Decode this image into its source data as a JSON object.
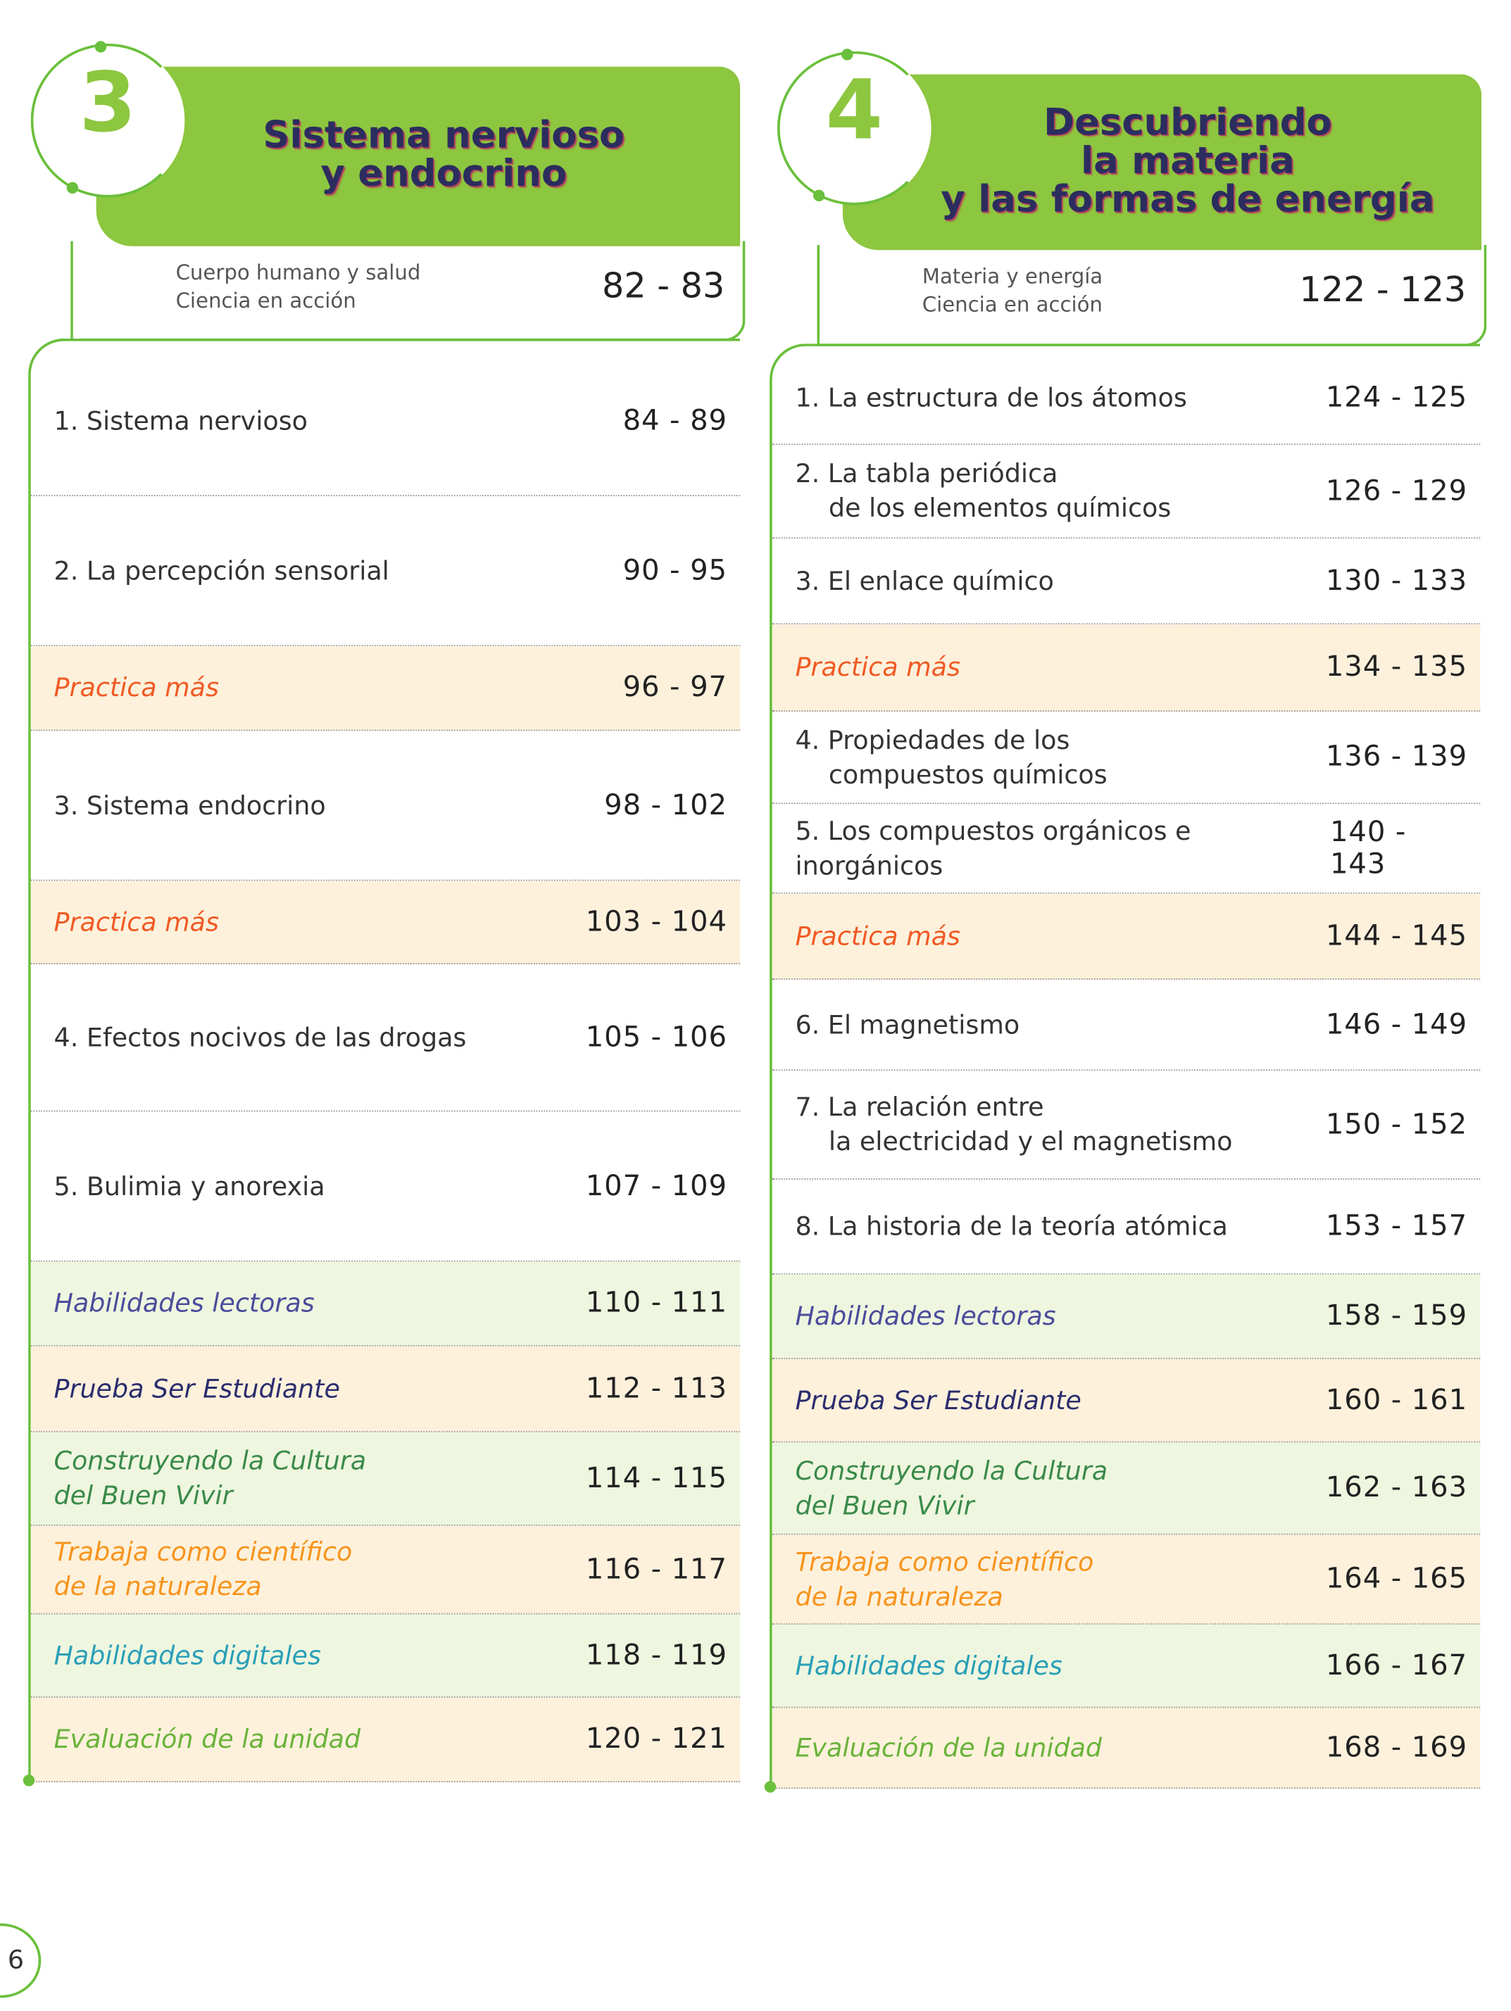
{
  "colors": {
    "header_green": "#8dc63f",
    "border_green": "#6abf3b",
    "practica": "#f15a24",
    "lectoras": "#4b4c9c",
    "prueba": "#2b2d6e",
    "buen_vivir": "#3a8a4a",
    "trabaja": "#f7941d",
    "digitales": "#2a9fb8",
    "evaluacion": "#6ab33a"
  },
  "page_number": "6",
  "units": [
    {
      "number": "3",
      "title_lines": [
        "Sistema nervioso",
        "y endocrino"
      ],
      "intro_lines": [
        "Cuerpo humano y salud",
        "Ciencia en acción"
      ],
      "intro_pages": "82 - 83",
      "rows": [
        {
          "title": [
            "1. Sistema nervioso"
          ],
          "pages": "84 - 89",
          "type": "lesson"
        },
        {
          "title": [
            "2. La percepción sensorial"
          ],
          "pages": "90 - 95",
          "type": "lesson"
        },
        {
          "title": [
            "Practica más"
          ],
          "pages": "96 - 97",
          "type": "practica"
        },
        {
          "title": [
            "3. Sistema endocrino"
          ],
          "pages": "98 - 102",
          "type": "lesson"
        },
        {
          "title": [
            "Practica más"
          ],
          "pages": "103 - 104",
          "type": "practica"
        },
        {
          "title": [
            "4. Efectos nocivos de las drogas"
          ],
          "pages": "105 - 106",
          "type": "lesson"
        },
        {
          "title": [
            "5. Bulimia y anorexia"
          ],
          "pages": "107 - 109",
          "type": "lesson"
        },
        {
          "title": [
            "Habilidades lectoras"
          ],
          "pages": "110 - 111",
          "type": "lectoras"
        },
        {
          "title": [
            "Prueba Ser Estudiante"
          ],
          "pages": "112 - 113",
          "type": "prueba"
        },
        {
          "title": [
            "Construyendo la Cultura",
            "del Buen Vivir"
          ],
          "pages": "114 - 115",
          "type": "buen_vivir"
        },
        {
          "title": [
            "Trabaja como científico",
            "de la naturaleza"
          ],
          "pages": "116 - 117",
          "type": "trabaja"
        },
        {
          "title": [
            "Habilidades digitales"
          ],
          "pages": "118 - 119",
          "type": "digitales"
        },
        {
          "title": [
            "Evaluación de la unidad"
          ],
          "pages": "120 - 121",
          "type": "evaluacion"
        }
      ]
    },
    {
      "number": "4",
      "title_lines": [
        "Descubriendo",
        "la materia",
        "y las formas de energía"
      ],
      "intro_lines": [
        "Materia y energía",
        "Ciencia en acción"
      ],
      "intro_pages": "122 - 123",
      "rows": [
        {
          "title": [
            "1. La estructura de los átomos"
          ],
          "pages": "124 - 125",
          "type": "lesson"
        },
        {
          "title": [
            "2. La tabla periódica",
            "de los elementos químicos"
          ],
          "pages": "126 - 129",
          "type": "lesson"
        },
        {
          "title": [
            "3. El enlace químico"
          ],
          "pages": "130 - 133",
          "type": "lesson"
        },
        {
          "title": [
            "Practica más"
          ],
          "pages": "134 - 135",
          "type": "practica"
        },
        {
          "title": [
            "4. Propiedades de los",
            "compuestos químicos"
          ],
          "pages": "136 - 139",
          "type": "lesson"
        },
        {
          "title": [
            "5. Los compuestos orgánicos e inorgánicos"
          ],
          "pages": "140 - 143",
          "type": "lesson"
        },
        {
          "title": [
            "Practica más"
          ],
          "pages": "144 - 145",
          "type": "practica"
        },
        {
          "title": [
            "6. El magnetismo"
          ],
          "pages": "146 - 149",
          "type": "lesson"
        },
        {
          "title": [
            "7. La relación entre",
            "la electricidad y el magnetismo"
          ],
          "pages": "150 - 152",
          "type": "lesson"
        },
        {
          "title": [
            "8. La historia de la teoría atómica"
          ],
          "pages": "153 - 157",
          "type": "lesson"
        },
        {
          "title": [
            "Habilidades lectoras"
          ],
          "pages": "158 - 159",
          "type": "lectoras"
        },
        {
          "title": [
            "Prueba Ser Estudiante"
          ],
          "pages": "160 - 161",
          "type": "prueba"
        },
        {
          "title": [
            "Construyendo la Cultura",
            "del Buen Vivir"
          ],
          "pages": "162 - 163",
          "type": "buen_vivir"
        },
        {
          "title": [
            "Trabaja como científico",
            "de la naturaleza"
          ],
          "pages": "164 - 165",
          "type": "trabaja"
        },
        {
          "title": [
            "Habilidades digitales"
          ],
          "pages": "166 - 167",
          "type": "digitales"
        },
        {
          "title": [
            "Evaluación de la unidad"
          ],
          "pages": "168 - 169",
          "type": "evaluacion"
        }
      ]
    }
  ]
}
